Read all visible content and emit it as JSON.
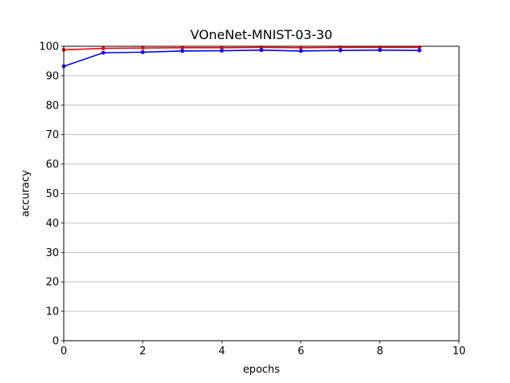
{
  "chart_data": {
    "type": "line",
    "title": "VOneNet-MNIST-03-30",
    "xlabel": "epochs",
    "ylabel": "accuracy",
    "xlim": [
      0,
      10
    ],
    "ylim": [
      0,
      100
    ],
    "x_ticks": [
      0,
      2,
      4,
      6,
      8,
      10
    ],
    "y_ticks": [
      0,
      10,
      20,
      30,
      40,
      50,
      60,
      70,
      80,
      90,
      100
    ],
    "grid": "horizontal",
    "legend": "none",
    "x": [
      0,
      1,
      2,
      3,
      4,
      5,
      6,
      7,
      8,
      9
    ],
    "series": [
      {
        "color": "#ff0000",
        "marker": "circle",
        "values": [
          98.8,
          99.3,
          99.4,
          99.5,
          99.5,
          99.6,
          99.5,
          99.6,
          99.6,
          99.6
        ]
      },
      {
        "color": "#0000ff",
        "marker": "circle",
        "values": [
          93.2,
          97.8,
          98.0,
          98.4,
          98.5,
          98.7,
          98.4,
          98.6,
          98.7,
          98.6
        ]
      }
    ]
  }
}
